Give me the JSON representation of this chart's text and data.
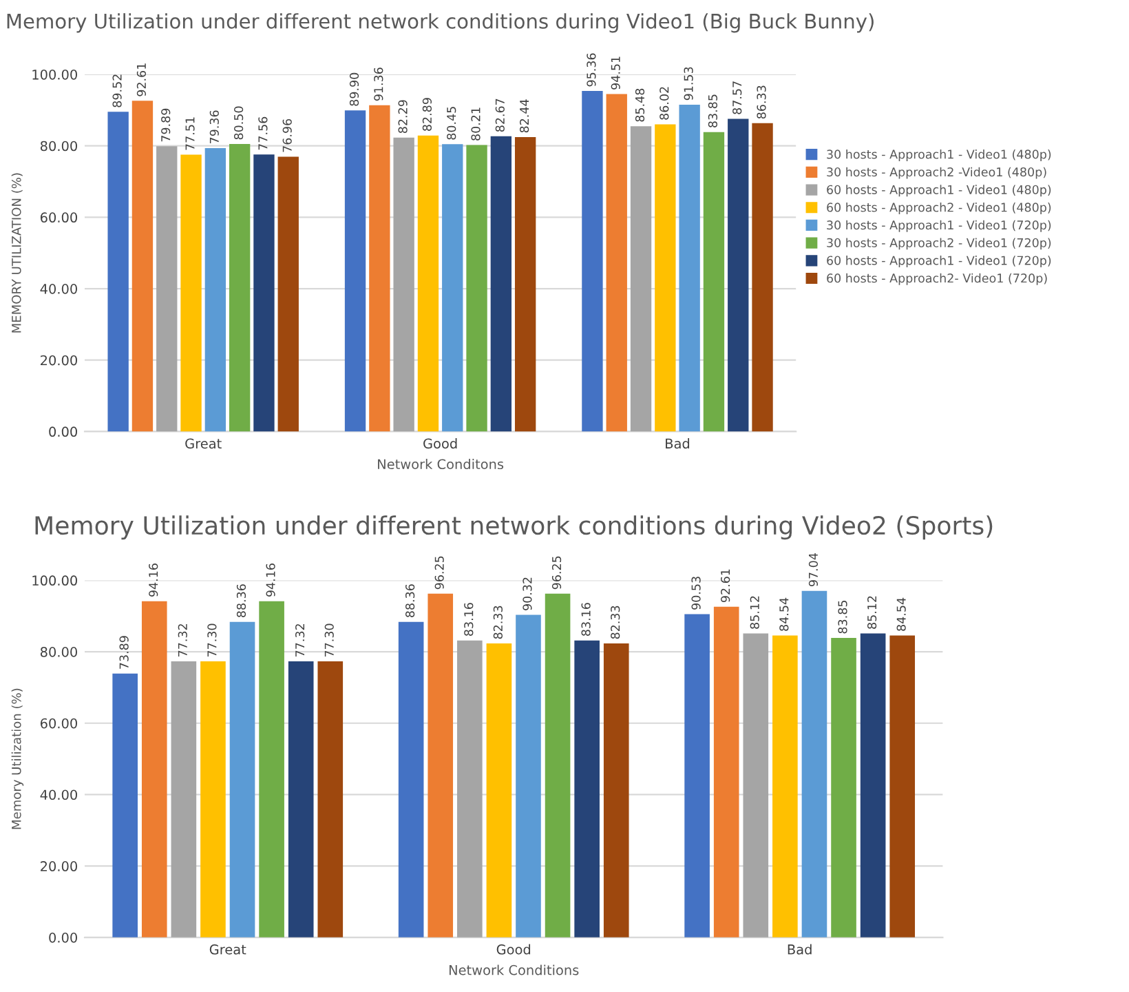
{
  "chart_data": [
    {
      "type": "bar",
      "title": "Memory Utilization under different network conditions during Video1 (Big Buck Bunny)",
      "xlabel": "Network Conditons",
      "ylabel": "MEMORY UTILIZATION (%)",
      "categories": [
        "Great",
        "Good",
        "Bad"
      ],
      "ylim": [
        0,
        100
      ],
      "yticks": [
        {
          "value": 0,
          "label": "0.00"
        },
        {
          "value": 20,
          "label": "20.00"
        },
        {
          "value": 40,
          "label": "40.00"
        },
        {
          "value": 60,
          "label": "60.00"
        },
        {
          "value": 80,
          "label": "80.00"
        },
        {
          "value": 100,
          "label": "100.00"
        }
      ],
      "grid": "y",
      "legend": "right",
      "series": [
        {
          "name": "30 hosts - Approach1 - Video1 (480p)",
          "color": "#4472c4",
          "values": [
            89.52,
            89.9,
            95.36
          ],
          "value_labels": [
            "89.52",
            "89.90",
            "95.36"
          ]
        },
        {
          "name": "30 hosts - Approach2 -Video1 (480p)",
          "color": "#ed7d31",
          "values": [
            92.61,
            91.36,
            94.51
          ],
          "value_labels": [
            "92.61",
            "91.36",
            "94.51"
          ]
        },
        {
          "name": "60 hosts - Approach1 - Video1 (480p)",
          "color": "#a5a5a5",
          "values": [
            79.89,
            82.29,
            85.48
          ],
          "value_labels": [
            "79.89",
            "82.29",
            "85.48"
          ]
        },
        {
          "name": "60 hosts - Approach2 - Video1 (480p)",
          "color": "#ffc000",
          "values": [
            77.51,
            82.89,
            86.02
          ],
          "value_labels": [
            "77.51",
            "82.89",
            "86.02"
          ]
        },
        {
          "name": "30 hosts - Approach1 - Video1 (720p)",
          "color": "#5b9bd5",
          "values": [
            79.36,
            80.45,
            91.53
          ],
          "value_labels": [
            "79.36",
            "80.45",
            "91.53"
          ]
        },
        {
          "name": "30 hosts - Approach2 - Video1 (720p)",
          "color": "#70ad47",
          "values": [
            80.5,
            80.21,
            83.85
          ],
          "value_labels": [
            "80.50",
            "80.21",
            "83.85"
          ]
        },
        {
          "name": "60 hosts - Approach1 - Video1 (720p)",
          "color": "#264478",
          "values": [
            77.56,
            82.67,
            87.57
          ],
          "value_labels": [
            "77.56",
            "82.67",
            "87.57"
          ]
        },
        {
          "name": "60 hosts - Approach2- Video1 (720p)",
          "color": "#9e480e",
          "values": [
            76.96,
            82.44,
            86.33
          ],
          "value_labels": [
            "76.96",
            "82.44",
            "86.33"
          ]
        }
      ]
    },
    {
      "type": "bar",
      "title": "Memory Utilization under different network conditions during Video2 (Sports)",
      "xlabel": "Network Conditions",
      "ylabel": "Memory Utilization (%)",
      "categories": [
        "Great",
        "Good",
        "Bad"
      ],
      "ylim": [
        0,
        100
      ],
      "yticks": [
        {
          "value": 0,
          "label": "0.00"
        },
        {
          "value": 20,
          "label": "20.00"
        },
        {
          "value": 40,
          "label": "40.00"
        },
        {
          "value": 60,
          "label": "60.00"
        },
        {
          "value": 80,
          "label": "80.00"
        },
        {
          "value": 100,
          "label": "100.00"
        }
      ],
      "grid": "y",
      "series": [
        {
          "color": "#4472c4",
          "values": [
            73.89,
            88.36,
            90.53
          ],
          "value_labels": [
            "73.89",
            "88.36",
            "90.53"
          ]
        },
        {
          "color": "#ed7d31",
          "values": [
            94.16,
            96.25,
            92.61
          ],
          "value_labels": [
            "94.16",
            "96.25",
            "92.61"
          ]
        },
        {
          "color": "#a5a5a5",
          "values": [
            77.32,
            83.16,
            85.12
          ],
          "value_labels": [
            "77.32",
            "83.16",
            "85.12"
          ]
        },
        {
          "color": "#ffc000",
          "values": [
            77.3,
            82.33,
            84.54
          ],
          "value_labels": [
            "77.30",
            "82.33",
            "84.54"
          ]
        },
        {
          "color": "#5b9bd5",
          "values": [
            88.36,
            90.32,
            97.04
          ],
          "value_labels": [
            "88.36",
            "90.32",
            "97.04"
          ]
        },
        {
          "color": "#70ad47",
          "values": [
            94.16,
            96.25,
            83.85
          ],
          "value_labels": [
            "94.16",
            "96.25",
            "83.85"
          ]
        },
        {
          "color": "#264478",
          "values": [
            77.32,
            83.16,
            85.12
          ],
          "value_labels": [
            "77.32",
            "83.16",
            "85.12"
          ]
        },
        {
          "color": "#9e480e",
          "values": [
            77.3,
            82.33,
            84.54
          ],
          "value_labels": [
            "77.30",
            "82.33",
            "84.54"
          ]
        }
      ]
    }
  ]
}
